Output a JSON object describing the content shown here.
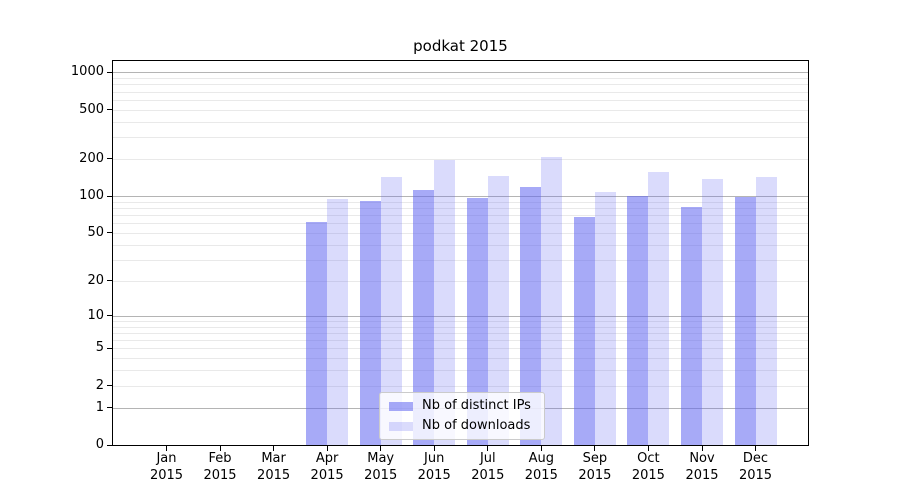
{
  "title": "podkat 2015",
  "colors": {
    "bar_ips": "rgba(95,100,240,0.55)",
    "bar_downloads": "rgba(95,100,240,0.23)",
    "grid_major": "#b4b4b4",
    "grid_minor": "#e9e9e9",
    "spine": "#000000",
    "text": "#000000",
    "legend_border": "#cbcbcb"
  },
  "axes": {
    "y_tick_values": [
      1000,
      500,
      200,
      100,
      50,
      20,
      10,
      5,
      2,
      1,
      0
    ],
    "grid_major_values": [
      1,
      10,
      100,
      1000
    ],
    "grid_minor_values": [
      2,
      3,
      4,
      5,
      6,
      7,
      8,
      9,
      20,
      30,
      40,
      50,
      60,
      70,
      80,
      90,
      200,
      300,
      400,
      500,
      600,
      700,
      800,
      900
    ]
  },
  "chart_data": {
    "type": "bar",
    "title": "podkat 2015",
    "yscale": "log1p",
    "ylim": [
      0,
      1100
    ],
    "grid": "both",
    "legend_position": "lower-center",
    "xlabel": "",
    "ylabel": "",
    "categories": [
      "Jan 2015",
      "Feb 2015",
      "Mar 2015",
      "Apr 2015",
      "May 2015",
      "Jun 2015",
      "Jul 2015",
      "Aug 2015",
      "Sep 2015",
      "Oct 2015",
      "Nov 2015",
      "Dec 2015"
    ],
    "series": [
      {
        "key": "ips",
        "name": "Nb of distinct IPs",
        "values": [
          0,
          0,
          0,
          62,
          92,
          113,
          97,
          118,
          67,
          100,
          82,
          98
        ]
      },
      {
        "key": "downloads",
        "name": "Nb of downloads",
        "values": [
          0,
          0,
          0,
          94,
          142,
          198,
          147,
          209,
          108,
          158,
          139,
          143
        ]
      }
    ]
  }
}
